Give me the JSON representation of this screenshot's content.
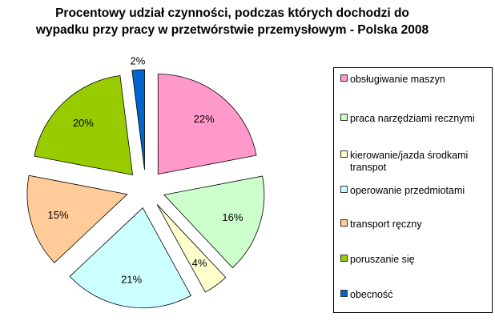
{
  "chart_data": {
    "type": "pie",
    "title_lines": [
      "Procentowy udział czynności, podczas których dochodzi do",
      "wypadku przy pracy w przetwórstwie przemysłowym - Polska 2008"
    ],
    "legend_position": "right",
    "slices": [
      {
        "label": "obsługiwanie maszyn",
        "value": 22,
        "data_label": "22%",
        "color": "#FF99CC"
      },
      {
        "label": "praca narzędziami recznymi",
        "value": 16,
        "data_label": "16%",
        "color": "#CCFFCC"
      },
      {
        "label": "kierowanie/jazda środkami transpot",
        "value": 4,
        "data_label": "4%",
        "color": "#FFFFCC"
      },
      {
        "label": "operowanie przedmiotami",
        "value": 21,
        "data_label": "21%",
        "color": "#CCFFFF"
      },
      {
        "label": "transport ręczny",
        "value": 15,
        "data_label": "15%",
        "color": "#FFCC99"
      },
      {
        "label": "poruszanie się",
        "value": 20,
        "data_label": "20%",
        "color": "#99CC00"
      },
      {
        "label": "obecność",
        "value": 2,
        "data_label": "2%",
        "color": "#0066CC"
      }
    ]
  }
}
